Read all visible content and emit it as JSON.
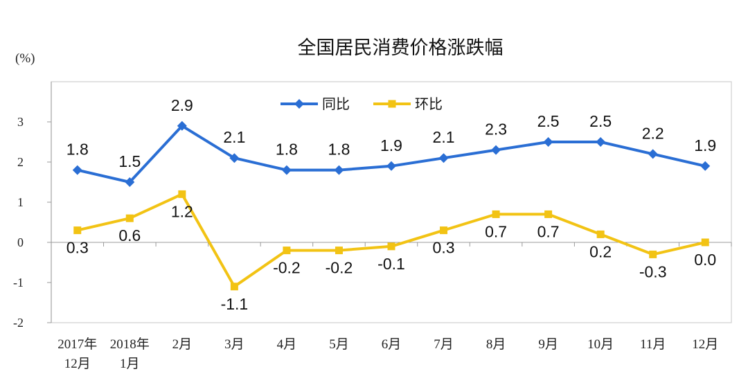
{
  "chart_data": {
    "type": "line",
    "title": "全国居民消费价格涨跌幅",
    "unit_label": "(%)",
    "categories": [
      [
        "2017年",
        "12月"
      ],
      [
        "2018年",
        "1月"
      ],
      [
        "2月"
      ],
      [
        "3月"
      ],
      [
        "4月"
      ],
      [
        "5月"
      ],
      [
        "6月"
      ],
      [
        "7月"
      ],
      [
        "8月"
      ],
      [
        "9月"
      ],
      [
        "10月"
      ],
      [
        "11月"
      ],
      [
        "12月"
      ]
    ],
    "ylim": [
      -2,
      4
    ],
    "yticks": [
      "3",
      "2",
      "1",
      "0",
      "-1",
      "-2"
    ],
    "ytick_values": [
      3,
      2,
      1,
      0,
      -1,
      -2
    ],
    "legend_position": "top-center",
    "grid": false,
    "series": [
      {
        "name": "同比",
        "color": "#2a6ed4",
        "marker": "diamond",
        "values": [
          1.8,
          1.5,
          2.9,
          2.1,
          1.8,
          1.8,
          1.9,
          2.1,
          2.3,
          2.5,
          2.5,
          2.2,
          1.9
        ],
        "labels": [
          "1.8",
          "1.5",
          "2.9",
          "2.1",
          "1.8",
          "1.8",
          "1.9",
          "2.1",
          "2.3",
          "2.5",
          "2.5",
          "2.2",
          "1.9"
        ]
      },
      {
        "name": "环比",
        "color": "#f2c314",
        "marker": "square",
        "values": [
          0.3,
          0.6,
          1.2,
          -1.1,
          -0.2,
          -0.2,
          -0.1,
          0.3,
          0.7,
          0.7,
          0.2,
          -0.3,
          0.0
        ],
        "labels": [
          "0.3",
          "0.6",
          "1.2",
          "-1.1",
          "-0.2",
          "-0.2",
          "-0.1",
          "0.3",
          "0.7",
          "0.7",
          "0.2",
          "-0.3",
          "0.0"
        ]
      }
    ]
  }
}
